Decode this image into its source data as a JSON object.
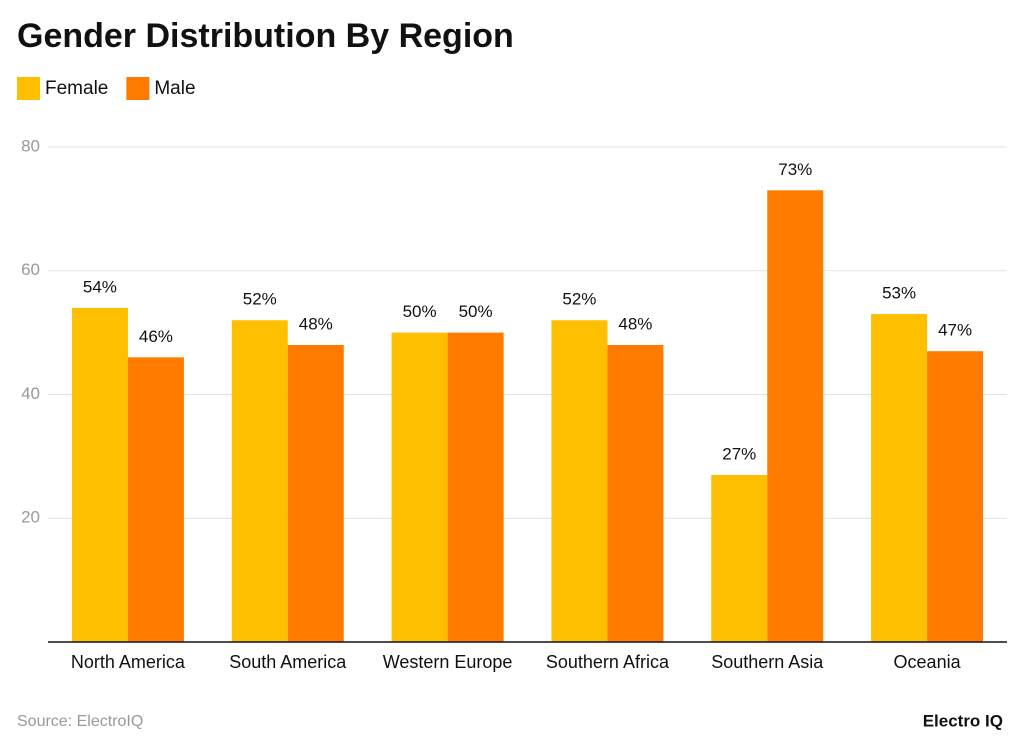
{
  "chart_data": {
    "type": "bar",
    "title": "Gender Distribution By Region",
    "categories": [
      "North America",
      "South America",
      "Western Europe",
      "Southern Africa",
      "Southern Asia",
      "Oceania"
    ],
    "series": [
      {
        "name": "Female",
        "color": "#fdbf00",
        "values": [
          54,
          52,
          50,
          52,
          27,
          53
        ],
        "value_labels": [
          "54%",
          "52%",
          "50%",
          "52%",
          "27%",
          "53%"
        ]
      },
      {
        "name": "Male",
        "color": "#fe7b00",
        "values": [
          46,
          48,
          50,
          48,
          73,
          47
        ],
        "value_labels": [
          "46%",
          "48%",
          "50%",
          "48%",
          "73%",
          "47%"
        ]
      }
    ],
    "ylim": [
      0,
      80
    ],
    "yticks": [
      20,
      40,
      60,
      80
    ],
    "grid": true,
    "legend": "top-left",
    "source": "Source: ElectroIQ",
    "brand": "Electro IQ"
  }
}
